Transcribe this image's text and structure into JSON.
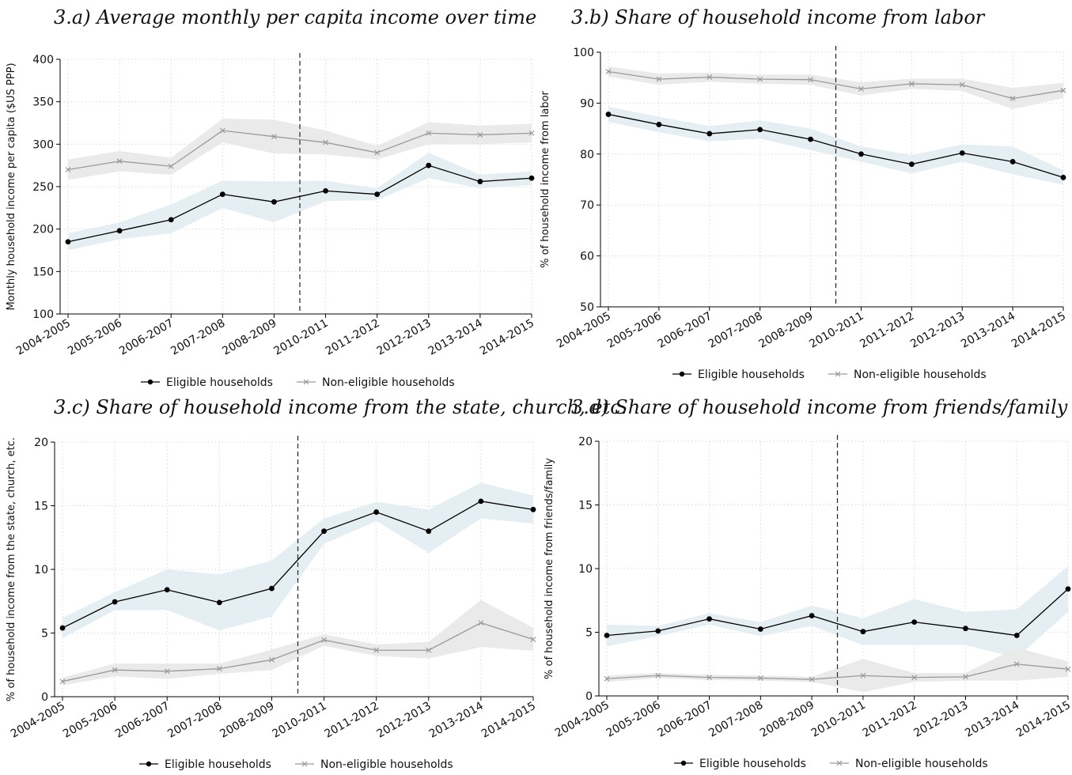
{
  "chart_data": [
    {
      "id": "a",
      "type": "line",
      "title": "3.a) Average monthly per capita income over time",
      "ylabel": "Monthly household income per capita ($US PPP)",
      "xlabel": "",
      "categories": [
        "2004-2005",
        "2005-2006",
        "2006-2007",
        "2007-2008",
        "2008-2009",
        "2010-2011",
        "2011-2012",
        "2012-2013",
        "2013-2014",
        "2014-2015"
      ],
      "ylim": [
        100,
        400
      ],
      "yticks": [
        100,
        150,
        200,
        250,
        300,
        350,
        400
      ],
      "vline_between": [
        4,
        5
      ],
      "grid": true,
      "legend": "bottom",
      "series": [
        {
          "name": "Eligible households",
          "color": "#000000",
          "marker": "dot",
          "values": [
            185,
            198,
            211,
            241,
            232,
            245,
            241,
            275,
            256,
            260
          ],
          "lower": [
            175,
            188,
            195,
            225,
            208,
            233,
            234,
            260,
            248,
            252
          ],
          "upper": [
            195,
            208,
            229,
            257,
            256,
            257,
            248,
            290,
            264,
            268
          ]
        },
        {
          "name": "Non-eligible households",
          "color": "#9a9a9a",
          "marker": "x",
          "values": [
            270,
            280,
            274,
            316,
            309,
            302,
            290,
            313,
            311,
            313
          ],
          "lower": [
            258,
            268,
            264,
            302,
            289,
            288,
            282,
            300,
            300,
            302
          ],
          "upper": [
            282,
            292,
            284,
            330,
            329,
            316,
            298,
            326,
            322,
            324
          ]
        }
      ]
    },
    {
      "id": "b",
      "type": "line",
      "title": "3.b) Share of household income from labor",
      "ylabel": "% of household income from labor",
      "xlabel": "",
      "categories": [
        "2004-2005",
        "2005-2006",
        "2006-2007",
        "2007-2008",
        "2008-2009",
        "2010-2011",
        "2011-2012",
        "2012-2013",
        "2013-2014",
        "2014-2015"
      ],
      "ylim": [
        50,
        100
      ],
      "yticks": [
        50,
        60,
        70,
        80,
        90,
        100
      ],
      "vline_between": [
        4,
        5
      ],
      "grid": true,
      "legend": "bottom",
      "series": [
        {
          "name": "Eligible households",
          "color": "#000000",
          "marker": "dot",
          "values": [
            87.8,
            85.8,
            84.0,
            84.8,
            82.9,
            80.0,
            78.0,
            80.2,
            78.5,
            75.4
          ],
          "lower": [
            86.3,
            84.3,
            82.5,
            83.0,
            80.8,
            78.5,
            76.2,
            78.5,
            76.0,
            74.0
          ],
          "upper": [
            89.3,
            87.3,
            85.5,
            86.6,
            85.0,
            81.5,
            79.8,
            81.9,
            81.5,
            76.8
          ]
        },
        {
          "name": "Non-eligible households",
          "color": "#9a9a9a",
          "marker": "x",
          "values": [
            96.2,
            94.7,
            95.1,
            94.7,
            94.6,
            92.8,
            93.8,
            93.6,
            90.9,
            92.5
          ],
          "lower": [
            95.2,
            93.6,
            94.2,
            93.8,
            93.6,
            91.5,
            92.8,
            92.4,
            88.8,
            91.0
          ],
          "upper": [
            97.2,
            95.8,
            96.0,
            95.6,
            95.6,
            94.1,
            94.8,
            94.8,
            93.0,
            94.0
          ]
        }
      ]
    },
    {
      "id": "c",
      "type": "line",
      "title": "3.c) Share of household income from the state, church, etc.",
      "ylabel": "% of household income from the state, church, etc.",
      "xlabel": "",
      "categories": [
        "2004-2005",
        "2005-2006",
        "2006-2007",
        "2007-2008",
        "2008-2009",
        "2010-2011",
        "2011-2012",
        "2012-2013",
        "2013-2014",
        "2014-2015"
      ],
      "ylim": [
        0,
        20
      ],
      "yticks": [
        0,
        5,
        10,
        15,
        20
      ],
      "vline_between": [
        4,
        5
      ],
      "grid": true,
      "legend": "bottom",
      "series": [
        {
          "name": "Eligible households",
          "color": "#000000",
          "marker": "dot",
          "values": [
            5.4,
            7.45,
            8.4,
            7.4,
            8.5,
            13.0,
            14.5,
            13.0,
            15.35,
            14.7
          ],
          "lower": [
            4.6,
            6.8,
            6.8,
            5.2,
            6.3,
            12.0,
            13.8,
            11.3,
            14.0,
            13.6
          ],
          "upper": [
            6.2,
            8.2,
            10.0,
            9.6,
            10.7,
            14.0,
            15.3,
            14.7,
            16.8,
            15.8
          ]
        },
        {
          "name": "Non-eligible households",
          "color": "#9a9a9a",
          "marker": "x",
          "values": [
            1.2,
            2.1,
            2.0,
            2.2,
            2.9,
            4.45,
            3.65,
            3.65,
            5.8,
            4.5
          ],
          "lower": [
            0.9,
            1.6,
            1.4,
            1.8,
            2.1,
            4.0,
            3.2,
            3.0,
            3.9,
            3.6
          ],
          "upper": [
            1.5,
            2.6,
            2.6,
            2.6,
            3.7,
            4.9,
            4.1,
            4.3,
            7.6,
            5.4
          ]
        }
      ]
    },
    {
      "id": "d",
      "type": "line",
      "title": "3.d) Share of household income from friends/family",
      "ylabel": "% of household income from friends/family",
      "xlabel": "",
      "categories": [
        "2004-2005",
        "2005-2006",
        "2006-2007",
        "2007-2008",
        "2008-2009",
        "2010-2011",
        "2011-2012",
        "2012-2013",
        "2013-2014",
        "2014-2015"
      ],
      "ylim": [
        0,
        20
      ],
      "yticks": [
        0,
        5,
        10,
        15,
        20
      ],
      "vline_between": [
        4,
        5
      ],
      "grid": true,
      "legend": "bottom",
      "series": [
        {
          "name": "Eligible households",
          "color": "#000000",
          "marker": "dot",
          "values": [
            4.75,
            5.1,
            6.05,
            5.25,
            6.3,
            5.05,
            5.8,
            5.3,
            4.75,
            8.4
          ],
          "lower": [
            3.9,
            4.7,
            5.6,
            4.7,
            5.5,
            4.0,
            4.0,
            4.0,
            3.0,
            6.6
          ],
          "upper": [
            5.6,
            5.5,
            6.5,
            5.8,
            7.1,
            6.1,
            7.6,
            6.6,
            6.8,
            10.2
          ]
        },
        {
          "name": "Non-eligible households",
          "color": "#9a9a9a",
          "marker": "x",
          "values": [
            1.35,
            1.6,
            1.45,
            1.4,
            1.3,
            1.6,
            1.45,
            1.5,
            2.5,
            2.1
          ],
          "lower": [
            1.1,
            1.4,
            1.25,
            1.2,
            1.1,
            0.3,
            1.1,
            1.2,
            1.2,
            1.5
          ],
          "upper": [
            1.6,
            1.8,
            1.65,
            1.6,
            1.5,
            2.9,
            1.8,
            1.8,
            3.8,
            2.7
          ]
        }
      ]
    }
  ],
  "colors": {
    "eligible_line": "#000000",
    "non_eligible_line": "#9a9a9a",
    "eligible_band": "#e4edf2",
    "non_eligible_band": "#e9e9e9",
    "grid": "#d9d9d9"
  }
}
